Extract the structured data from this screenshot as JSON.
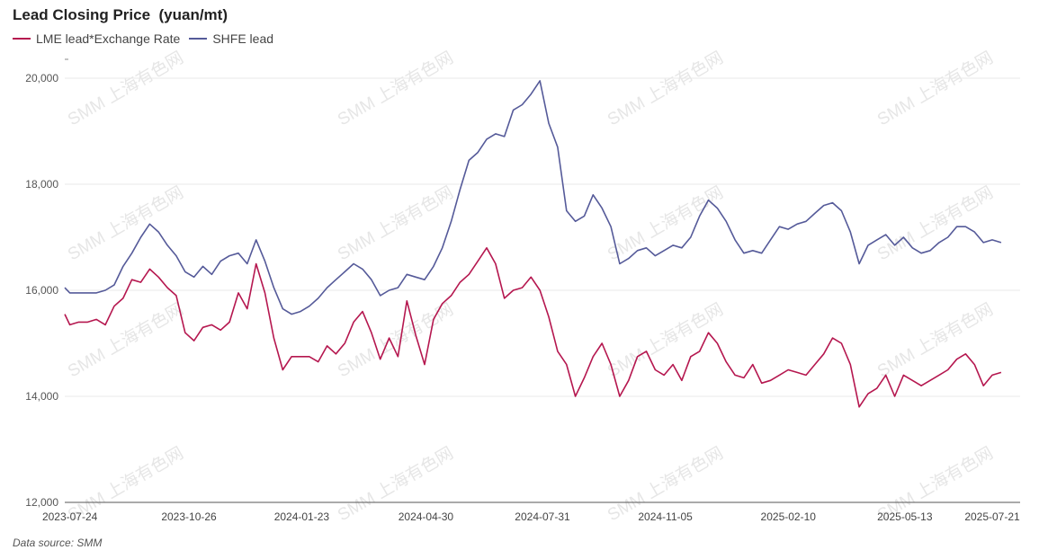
{
  "chart_data": {
    "type": "line",
    "title": "Lead Closing Price  (yuan/mt)",
    "source_note": "Data source:  SMM",
    "watermark": "SMM 上海有色网",
    "y_ticks": [
      "12,000",
      "14,000",
      "16,000",
      "18,000",
      "20,000"
    ],
    "y_tick_values": [
      12000,
      14000,
      16000,
      18000,
      20000
    ],
    "x_ticks": [
      "2023-07-24",
      "2023-10-26",
      "2024-01-23",
      "2024-04-30",
      "2024-07-31",
      "2024-11-05",
      "2025-02-10",
      "2025-05-13",
      "2025-07-21"
    ],
    "ylim": [
      12000,
      20000
    ],
    "xlim": [
      "2023-07-20",
      "2025-08-12"
    ],
    "grid": true,
    "legend_position": "top-left",
    "series": [
      {
        "name": "LME lead*Exchange Rate",
        "color": "#b5174f",
        "points": [
          [
            "2023-07-20",
            15550
          ],
          [
            "2023-07-24",
            15350
          ],
          [
            "2023-07-31",
            15400
          ],
          [
            "2023-08-07",
            15400
          ],
          [
            "2023-08-14",
            15450
          ],
          [
            "2023-08-21",
            15350
          ],
          [
            "2023-08-28",
            15700
          ],
          [
            "2023-09-04",
            15850
          ],
          [
            "2023-09-11",
            16200
          ],
          [
            "2023-09-18",
            16150
          ],
          [
            "2023-09-25",
            16400
          ],
          [
            "2023-10-02",
            16250
          ],
          [
            "2023-10-09",
            16050
          ],
          [
            "2023-10-16",
            15900
          ],
          [
            "2023-10-23",
            15200
          ],
          [
            "2023-10-30",
            15050
          ],
          [
            "2023-11-06",
            15300
          ],
          [
            "2023-11-13",
            15350
          ],
          [
            "2023-11-20",
            15250
          ],
          [
            "2023-11-27",
            15400
          ],
          [
            "2023-12-04",
            15950
          ],
          [
            "2023-12-11",
            15650
          ],
          [
            "2023-12-18",
            16500
          ],
          [
            "2023-12-25",
            15950
          ],
          [
            "2024-01-01",
            15100
          ],
          [
            "2024-01-08",
            14500
          ],
          [
            "2024-01-15",
            14750
          ],
          [
            "2024-01-22",
            14750
          ],
          [
            "2024-01-29",
            14750
          ],
          [
            "2024-02-05",
            14650
          ],
          [
            "2024-02-12",
            14950
          ],
          [
            "2024-02-19",
            14800
          ],
          [
            "2024-02-26",
            15000
          ],
          [
            "2024-03-04",
            15400
          ],
          [
            "2024-03-11",
            15600
          ],
          [
            "2024-03-18",
            15200
          ],
          [
            "2024-03-25",
            14700
          ],
          [
            "2024-04-01",
            15100
          ],
          [
            "2024-04-08",
            14750
          ],
          [
            "2024-04-15",
            15800
          ],
          [
            "2024-04-22",
            15150
          ],
          [
            "2024-04-29",
            14600
          ],
          [
            "2024-05-06",
            15450
          ],
          [
            "2024-05-13",
            15750
          ],
          [
            "2024-05-20",
            15900
          ],
          [
            "2024-05-27",
            16150
          ],
          [
            "2024-06-03",
            16300
          ],
          [
            "2024-06-10",
            16550
          ],
          [
            "2024-06-17",
            16800
          ],
          [
            "2024-06-24",
            16500
          ],
          [
            "2024-07-01",
            15850
          ],
          [
            "2024-07-08",
            16000
          ],
          [
            "2024-07-15",
            16050
          ],
          [
            "2024-07-22",
            16250
          ],
          [
            "2024-07-29",
            16000
          ],
          [
            "2024-08-05",
            15500
          ],
          [
            "2024-08-12",
            14850
          ],
          [
            "2024-08-19",
            14600
          ],
          [
            "2024-08-26",
            14000
          ],
          [
            "2024-09-02",
            14350
          ],
          [
            "2024-09-09",
            14750
          ],
          [
            "2024-09-16",
            15000
          ],
          [
            "2024-09-23",
            14600
          ],
          [
            "2024-09-30",
            14000
          ],
          [
            "2024-10-07",
            14300
          ],
          [
            "2024-10-14",
            14750
          ],
          [
            "2024-10-21",
            14850
          ],
          [
            "2024-10-28",
            14500
          ],
          [
            "2024-11-04",
            14400
          ],
          [
            "2024-11-11",
            14600
          ],
          [
            "2024-11-18",
            14300
          ],
          [
            "2024-11-25",
            14750
          ],
          [
            "2024-12-02",
            14850
          ],
          [
            "2024-12-09",
            15200
          ],
          [
            "2024-12-16",
            15000
          ],
          [
            "2024-12-23",
            14650
          ],
          [
            "2024-12-30",
            14400
          ],
          [
            "2025-01-06",
            14350
          ],
          [
            "2025-01-13",
            14600
          ],
          [
            "2025-01-20",
            14250
          ],
          [
            "2025-01-27",
            14300
          ],
          [
            "2025-02-03",
            14400
          ],
          [
            "2025-02-10",
            14500
          ],
          [
            "2025-02-17",
            14450
          ],
          [
            "2025-02-24",
            14400
          ],
          [
            "2025-03-03",
            14600
          ],
          [
            "2025-03-10",
            14800
          ],
          [
            "2025-03-17",
            15100
          ],
          [
            "2025-03-24",
            15000
          ],
          [
            "2025-03-31",
            14600
          ],
          [
            "2025-04-07",
            13800
          ],
          [
            "2025-04-14",
            14050
          ],
          [
            "2025-04-21",
            14150
          ],
          [
            "2025-04-28",
            14400
          ],
          [
            "2025-05-05",
            14000
          ],
          [
            "2025-05-12",
            14400
          ],
          [
            "2025-05-19",
            14300
          ],
          [
            "2025-05-26",
            14200
          ],
          [
            "2025-06-02",
            14300
          ],
          [
            "2025-06-09",
            14400
          ],
          [
            "2025-06-16",
            14500
          ],
          [
            "2025-06-23",
            14700
          ],
          [
            "2025-06-30",
            14800
          ],
          [
            "2025-07-07",
            14600
          ],
          [
            "2025-07-14",
            14200
          ],
          [
            "2025-07-21",
            14400
          ],
          [
            "2025-07-28",
            14450
          ]
        ]
      },
      {
        "name": "SHFE lead",
        "color": "#555a99",
        "points": [
          [
            "2023-07-20",
            16050
          ],
          [
            "2023-07-24",
            15950
          ],
          [
            "2023-07-31",
            15950
          ],
          [
            "2023-08-07",
            15950
          ],
          [
            "2023-08-14",
            15950
          ],
          [
            "2023-08-21",
            16000
          ],
          [
            "2023-08-28",
            16100
          ],
          [
            "2023-09-04",
            16450
          ],
          [
            "2023-09-11",
            16700
          ],
          [
            "2023-09-18",
            17000
          ],
          [
            "2023-09-25",
            17250
          ],
          [
            "2023-10-02",
            17100
          ],
          [
            "2023-10-09",
            16850
          ],
          [
            "2023-10-16",
            16650
          ],
          [
            "2023-10-23",
            16350
          ],
          [
            "2023-10-30",
            16250
          ],
          [
            "2023-11-06",
            16450
          ],
          [
            "2023-11-13",
            16300
          ],
          [
            "2023-11-20",
            16550
          ],
          [
            "2023-11-27",
            16650
          ],
          [
            "2023-12-04",
            16700
          ],
          [
            "2023-12-11",
            16500
          ],
          [
            "2023-12-18",
            16950
          ],
          [
            "2023-12-25",
            16550
          ],
          [
            "2024-01-01",
            16050
          ],
          [
            "2024-01-08",
            15650
          ],
          [
            "2024-01-15",
            15550
          ],
          [
            "2024-01-22",
            15600
          ],
          [
            "2024-01-29",
            15700
          ],
          [
            "2024-02-05",
            15850
          ],
          [
            "2024-02-12",
            16050
          ],
          [
            "2024-02-19",
            16200
          ],
          [
            "2024-02-26",
            16350
          ],
          [
            "2024-03-04",
            16500
          ],
          [
            "2024-03-11",
            16400
          ],
          [
            "2024-03-18",
            16200
          ],
          [
            "2024-03-25",
            15900
          ],
          [
            "2024-04-01",
            16000
          ],
          [
            "2024-04-08",
            16050
          ],
          [
            "2024-04-15",
            16300
          ],
          [
            "2024-04-22",
            16250
          ],
          [
            "2024-04-29",
            16200
          ],
          [
            "2024-05-06",
            16450
          ],
          [
            "2024-05-13",
            16800
          ],
          [
            "2024-05-20",
            17300
          ],
          [
            "2024-05-27",
            17900
          ],
          [
            "2024-06-03",
            18450
          ],
          [
            "2024-06-10",
            18600
          ],
          [
            "2024-06-17",
            18850
          ],
          [
            "2024-06-24",
            18950
          ],
          [
            "2024-07-01",
            18900
          ],
          [
            "2024-07-08",
            19400
          ],
          [
            "2024-07-15",
            19500
          ],
          [
            "2024-07-22",
            19700
          ],
          [
            "2024-07-29",
            19950
          ],
          [
            "2024-08-05",
            19150
          ],
          [
            "2024-08-12",
            18700
          ],
          [
            "2024-08-19",
            17500
          ],
          [
            "2024-08-26",
            17300
          ],
          [
            "2024-09-02",
            17400
          ],
          [
            "2024-09-09",
            17800
          ],
          [
            "2024-09-16",
            17550
          ],
          [
            "2024-09-23",
            17200
          ],
          [
            "2024-09-30",
            16500
          ],
          [
            "2024-10-07",
            16600
          ],
          [
            "2024-10-14",
            16750
          ],
          [
            "2024-10-21",
            16800
          ],
          [
            "2024-10-28",
            16650
          ],
          [
            "2024-11-04",
            16750
          ],
          [
            "2024-11-11",
            16850
          ],
          [
            "2024-11-18",
            16800
          ],
          [
            "2024-11-25",
            17000
          ],
          [
            "2024-12-02",
            17400
          ],
          [
            "2024-12-09",
            17700
          ],
          [
            "2024-12-16",
            17550
          ],
          [
            "2024-12-23",
            17300
          ],
          [
            "2024-12-30",
            16950
          ],
          [
            "2025-01-06",
            16700
          ],
          [
            "2025-01-13",
            16750
          ],
          [
            "2025-01-20",
            16700
          ],
          [
            "2025-01-27",
            16950
          ],
          [
            "2025-02-03",
            17200
          ],
          [
            "2025-02-10",
            17150
          ],
          [
            "2025-02-17",
            17250
          ],
          [
            "2025-02-24",
            17300
          ],
          [
            "2025-03-03",
            17450
          ],
          [
            "2025-03-10",
            17600
          ],
          [
            "2025-03-17",
            17650
          ],
          [
            "2025-03-24",
            17500
          ],
          [
            "2025-03-31",
            17100
          ],
          [
            "2025-04-07",
            16500
          ],
          [
            "2025-04-14",
            16850
          ],
          [
            "2025-04-21",
            16950
          ],
          [
            "2025-04-28",
            17050
          ],
          [
            "2025-05-05",
            16850
          ],
          [
            "2025-05-12",
            17000
          ],
          [
            "2025-05-19",
            16800
          ],
          [
            "2025-05-26",
            16700
          ],
          [
            "2025-06-02",
            16750
          ],
          [
            "2025-06-09",
            16900
          ],
          [
            "2025-06-16",
            17000
          ],
          [
            "2025-06-23",
            17200
          ],
          [
            "2025-06-30",
            17200
          ],
          [
            "2025-07-07",
            17100
          ],
          [
            "2025-07-14",
            16900
          ],
          [
            "2025-07-21",
            16950
          ],
          [
            "2025-07-28",
            16900
          ]
        ]
      }
    ]
  }
}
